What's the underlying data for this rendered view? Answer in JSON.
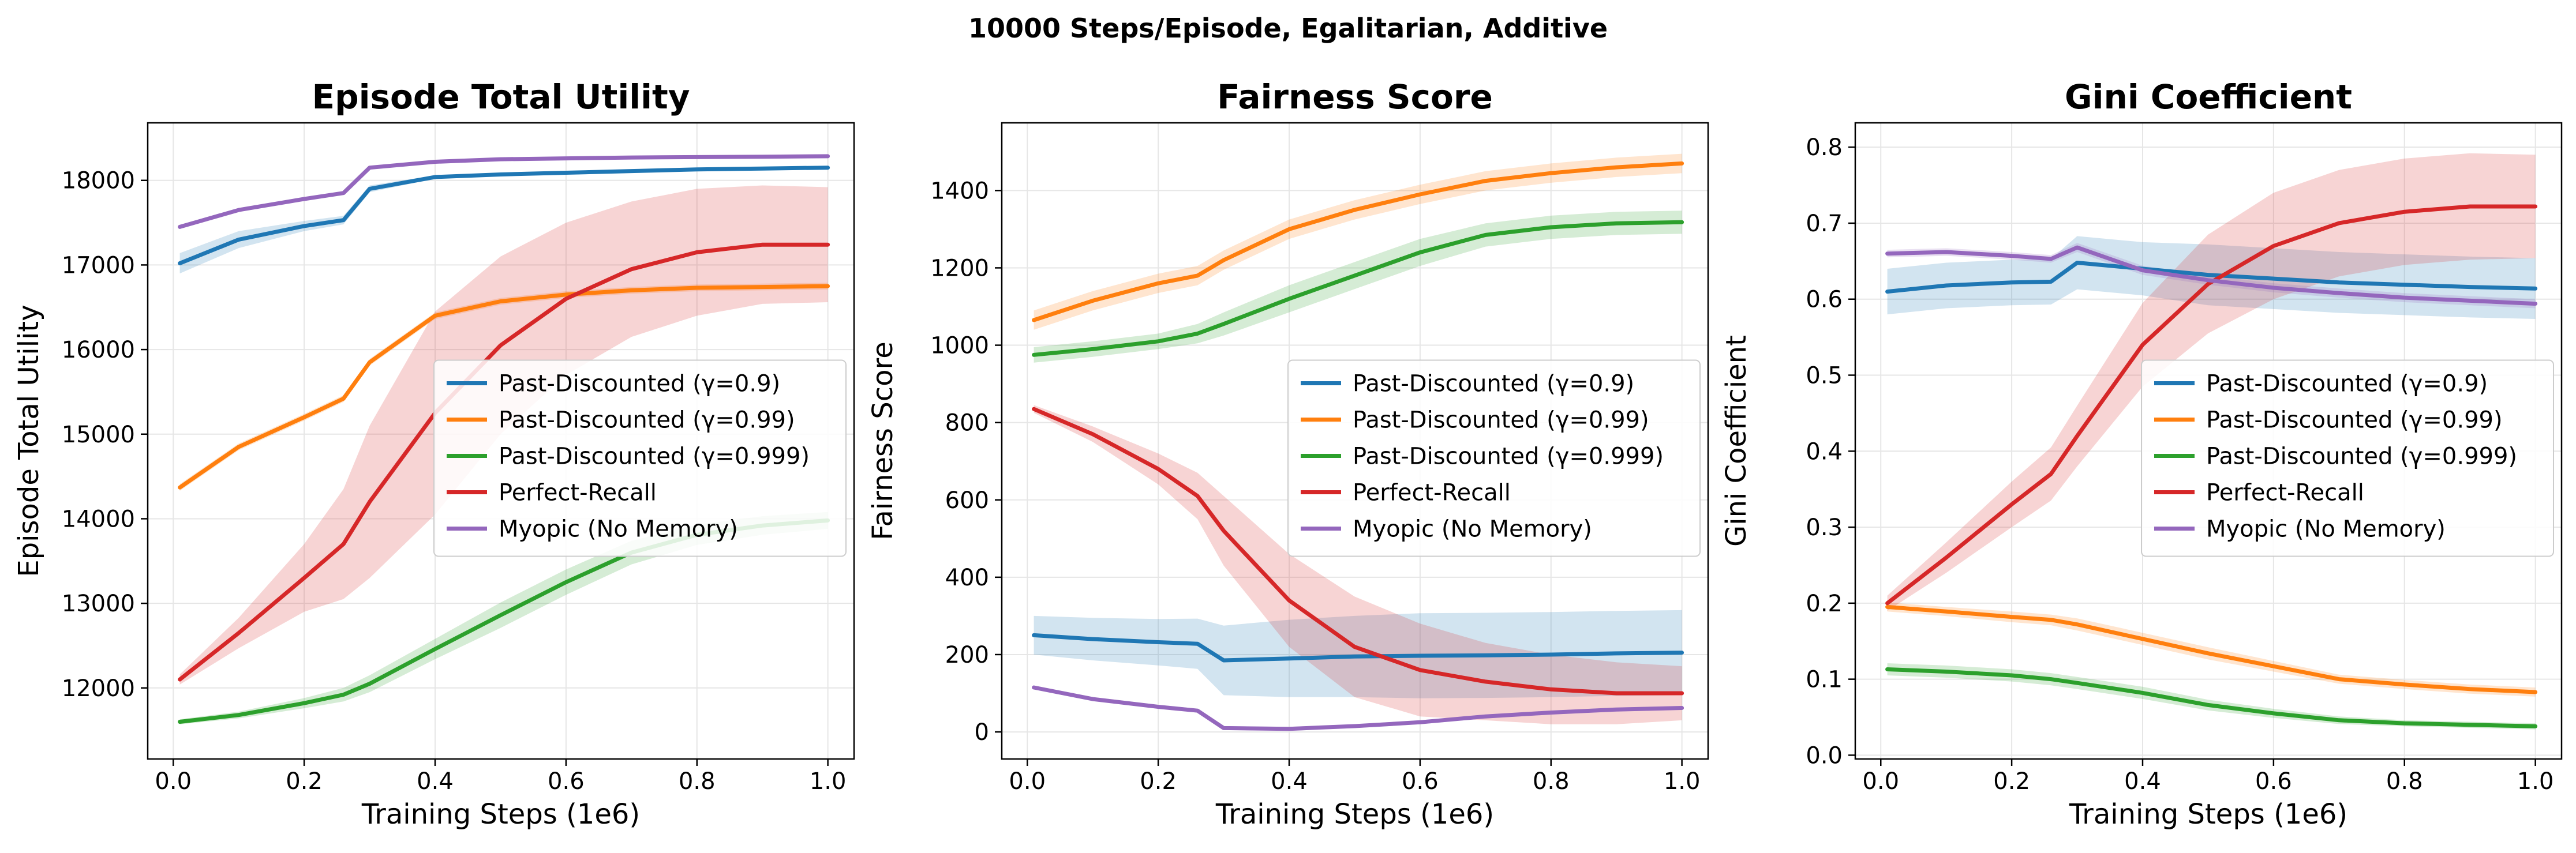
{
  "suptitle": "10000 Steps/Episode, Egalitarian, Additive",
  "colors": {
    "Past-Discounted (γ=0.9)": "#1f77b4",
    "Past-Discounted (γ=0.99)": "#ff7f0e",
    "Past-Discounted (γ=0.999)": "#2ca02c",
    "Perfect-Recall": "#d62728",
    "Myopic (No Memory)": "#9467bd"
  },
  "chart_data": [
    {
      "type": "line",
      "title": "Episode Total Utility",
      "xlabel": "Training Steps (1e6)",
      "ylabel": "Episode Total Utility",
      "xlim": [
        -0.039,
        1.04
      ],
      "ylim": [
        11160,
        18680
      ],
      "xticks": [
        0.0,
        0.2,
        0.4,
        0.6,
        0.8,
        1.0
      ],
      "xtick_labels": [
        "0.0",
        "0.2",
        "0.4",
        "0.6",
        "0.8",
        "1.0"
      ],
      "yticks": [
        12000,
        13000,
        14000,
        15000,
        16000,
        17000,
        18000
      ],
      "ytick_labels": [
        "12000",
        "13000",
        "14000",
        "15000",
        "16000",
        "17000",
        "18000"
      ],
      "legend": "center-right",
      "grid": true,
      "x": [
        0.01,
        0.1,
        0.2,
        0.26,
        0.3,
        0.4,
        0.5,
        0.6,
        0.7,
        0.8,
        0.9,
        1.0
      ],
      "series": [
        {
          "name": "Past-Discounted (γ=0.9)",
          "values": [
            17020,
            17300,
            17460,
            17530,
            17900,
            18040,
            18070,
            18090,
            18110,
            18130,
            18140,
            18150
          ],
          "band": [
            120,
            100,
            60,
            50,
            40,
            20,
            20,
            20,
            20,
            20,
            20,
            20
          ]
        },
        {
          "name": "Past-Discounted (γ=0.99)",
          "values": [
            14370,
            14850,
            15200,
            15420,
            15850,
            16400,
            16570,
            16650,
            16700,
            16730,
            16740,
            16750
          ],
          "band": [
            40,
            40,
            40,
            40,
            40,
            40,
            40,
            40,
            40,
            40,
            40,
            40
          ]
        },
        {
          "name": "Past-Discounted (γ=0.999)",
          "values": [
            11600,
            11680,
            11820,
            11920,
            12050,
            12460,
            12860,
            13250,
            13600,
            13810,
            13920,
            13980
          ],
          "band": [
            30,
            40,
            60,
            80,
            100,
            120,
            150,
            150,
            140,
            120,
            110,
            100
          ]
        },
        {
          "name": "Perfect-Recall",
          "values": [
            12100,
            12650,
            13300,
            13700,
            14200,
            15250,
            16050,
            16600,
            16950,
            17150,
            17240,
            17240
          ],
          "band": [
            60,
            180,
            400,
            650,
            900,
            1200,
            1050,
            900,
            800,
            750,
            700,
            680
          ]
        },
        {
          "name": "Myopic (No Memory)",
          "values": [
            17450,
            17650,
            17780,
            17850,
            18150,
            18220,
            18250,
            18260,
            18270,
            18275,
            18280,
            18285
          ],
          "band": [
            10,
            10,
            10,
            10,
            10,
            10,
            10,
            10,
            10,
            10,
            10,
            10
          ]
        }
      ]
    },
    {
      "type": "line",
      "title": "Fairness Score",
      "xlabel": "Training Steps (1e6)",
      "ylabel": "Fairness Score",
      "xlim": [
        -0.039,
        1.04
      ],
      "ylim": [
        -70,
        1575
      ],
      "xticks": [
        0.0,
        0.2,
        0.4,
        0.6,
        0.8,
        1.0
      ],
      "xtick_labels": [
        "0.0",
        "0.2",
        "0.4",
        "0.6",
        "0.8",
        "1.0"
      ],
      "yticks": [
        0,
        200,
        400,
        600,
        800,
        1000,
        1200,
        1400
      ],
      "ytick_labels": [
        "0",
        "200",
        "400",
        "600",
        "800",
        "1000",
        "1200",
        "1400"
      ],
      "legend": "center-right",
      "grid": true,
      "x": [
        0.01,
        0.1,
        0.2,
        0.26,
        0.3,
        0.4,
        0.5,
        0.6,
        0.7,
        0.8,
        0.9,
        1.0
      ],
      "series": [
        {
          "name": "Past-Discounted (γ=0.9)",
          "values": [
            250,
            240,
            232,
            228,
            185,
            190,
            195,
            197,
            198,
            200,
            203,
            205
          ],
          "band": [
            50,
            55,
            60,
            65,
            90,
            100,
            105,
            110,
            110,
            110,
            110,
            110
          ]
        },
        {
          "name": "Past-Discounted (γ=0.99)",
          "values": [
            1065,
            1115,
            1160,
            1180,
            1220,
            1300,
            1350,
            1390,
            1425,
            1445,
            1460,
            1470
          ],
          "band": [
            25,
            25,
            25,
            25,
            25,
            25,
            25,
            25,
            25,
            25,
            25,
            25
          ]
        },
        {
          "name": "Past-Discounted (γ=0.999)",
          "values": [
            975,
            990,
            1010,
            1030,
            1055,
            1120,
            1180,
            1240,
            1285,
            1305,
            1315,
            1318
          ],
          "band": [
            20,
            20,
            20,
            25,
            30,
            35,
            35,
            35,
            30,
            30,
            30,
            30
          ]
        },
        {
          "name": "Perfect-Recall",
          "values": [
            835,
            770,
            680,
            610,
            520,
            340,
            220,
            160,
            130,
            110,
            100,
            100
          ],
          "band": [
            10,
            20,
            40,
            60,
            90,
            120,
            130,
            120,
            100,
            90,
            80,
            70
          ]
        },
        {
          "name": "Myopic (No Memory)",
          "values": [
            115,
            85,
            65,
            55,
            10,
            8,
            15,
            25,
            40,
            50,
            58,
            62
          ],
          "band": [
            5,
            5,
            5,
            5,
            5,
            5,
            5,
            5,
            5,
            5,
            5,
            5
          ]
        }
      ]
    },
    {
      "type": "line",
      "title": "Gini Coefficient",
      "xlabel": "Training Steps (1e6)",
      "ylabel": "Gini Coefficient",
      "xlim": [
        -0.039,
        1.04
      ],
      "ylim": [
        -0.005,
        0.832
      ],
      "xticks": [
        0.0,
        0.2,
        0.4,
        0.6,
        0.8,
        1.0
      ],
      "xtick_labels": [
        "0.0",
        "0.2",
        "0.4",
        "0.6",
        "0.8",
        "1.0"
      ],
      "yticks": [
        0.0,
        0.1,
        0.2,
        0.3,
        0.4,
        0.5,
        0.6,
        0.7,
        0.8
      ],
      "ytick_labels": [
        "0.0",
        "0.1",
        "0.2",
        "0.3",
        "0.4",
        "0.5",
        "0.6",
        "0.7",
        "0.8"
      ],
      "legend": "center-right",
      "grid": true,
      "x": [
        0.01,
        0.1,
        0.2,
        0.26,
        0.3,
        0.4,
        0.5,
        0.6,
        0.7,
        0.8,
        0.9,
        1.0
      ],
      "series": [
        {
          "name": "Past-Discounted (γ=0.9)",
          "values": [
            0.61,
            0.618,
            0.622,
            0.623,
            0.648,
            0.64,
            0.632,
            0.627,
            0.622,
            0.619,
            0.616,
            0.614
          ],
          "band": [
            0.03,
            0.03,
            0.03,
            0.03,
            0.035,
            0.035,
            0.04,
            0.04,
            0.04,
            0.04,
            0.04,
            0.04
          ]
        },
        {
          "name": "Past-Discounted (γ=0.99)",
          "values": [
            0.195,
            0.189,
            0.182,
            0.178,
            0.172,
            0.153,
            0.134,
            0.117,
            0.1,
            0.093,
            0.087,
            0.083
          ],
          "band": [
            0.006,
            0.006,
            0.007,
            0.007,
            0.008,
            0.008,
            0.008,
            0.007,
            0.006,
            0.006,
            0.006,
            0.006
          ]
        },
        {
          "name": "Past-Discounted (γ=0.999)",
          "values": [
            0.113,
            0.11,
            0.105,
            0.1,
            0.095,
            0.082,
            0.066,
            0.055,
            0.046,
            0.042,
            0.04,
            0.038
          ],
          "band": [
            0.008,
            0.008,
            0.008,
            0.008,
            0.008,
            0.008,
            0.007,
            0.006,
            0.005,
            0.004,
            0.004,
            0.004
          ]
        },
        {
          "name": "Perfect-Recall",
          "values": [
            0.2,
            0.26,
            0.33,
            0.37,
            0.42,
            0.54,
            0.62,
            0.67,
            0.7,
            0.715,
            0.722,
            0.722
          ],
          "band": [
            0.01,
            0.02,
            0.03,
            0.035,
            0.04,
            0.055,
            0.065,
            0.07,
            0.07,
            0.07,
            0.07,
            0.068
          ]
        },
        {
          "name": "Myopic (No Memory)",
          "values": [
            0.66,
            0.662,
            0.657,
            0.653,
            0.668,
            0.638,
            0.625,
            0.615,
            0.608,
            0.602,
            0.598,
            0.594
          ],
          "band": [
            0.005,
            0.005,
            0.005,
            0.005,
            0.006,
            0.006,
            0.006,
            0.006,
            0.006,
            0.006,
            0.006,
            0.006
          ]
        }
      ]
    }
  ]
}
